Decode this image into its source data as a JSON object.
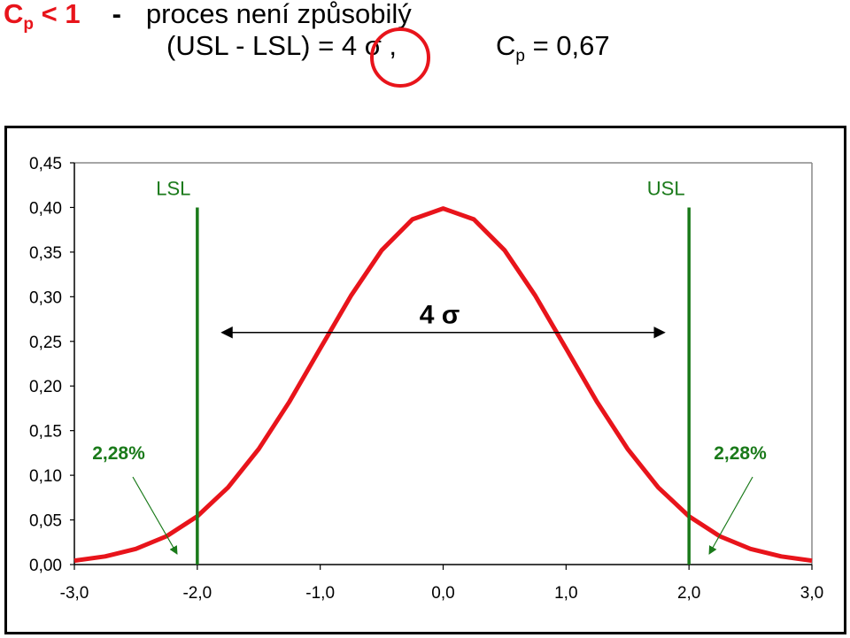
{
  "header": {
    "cp_symbol": "C",
    "cp_sub": "p",
    "cp_relation": "< 1",
    "dash": "-",
    "description": "proces není způsobilý",
    "formula_left": "(USL - LSL) = 4 σ ,",
    "cp_value_symbol": "C",
    "cp_value_sub": "p",
    "cp_value_text": "= 0,67"
  },
  "chart_data": {
    "type": "line",
    "series": [
      {
        "values_x": [
          -3.0,
          -2.75,
          -2.5,
          -2.25,
          -2.0,
          -1.75,
          -1.5,
          -1.25,
          -1.0,
          -0.75,
          -0.5,
          -0.25,
          0.0,
          0.25,
          0.5,
          0.75,
          1.0,
          1.25,
          1.5,
          1.75,
          2.0,
          2.25,
          2.5,
          2.75,
          3.0
        ],
        "values_y": [
          0.0044,
          0.0091,
          0.0175,
          0.0317,
          0.054,
          0.0863,
          0.1295,
          0.1826,
          0.242,
          0.3011,
          0.3521,
          0.3867,
          0.3989,
          0.3867,
          0.3521,
          0.3011,
          0.242,
          0.1826,
          0.1295,
          0.0863,
          0.054,
          0.0317,
          0.0175,
          0.0091,
          0.0044
        ]
      }
    ],
    "x_ticks": [
      "-3,0",
      "-2,0",
      "-1,0",
      "0,0",
      "1,0",
      "2,0",
      "3,0"
    ],
    "y_ticks": [
      "0,00",
      "0,05",
      "0,10",
      "0,15",
      "0,20",
      "0,25",
      "0,30",
      "0,35",
      "0,40",
      "0,45"
    ],
    "xlim": [
      -3.0,
      3.0
    ],
    "ylim": [
      0.0,
      0.45
    ],
    "grid": false,
    "annotations": {
      "lsl": {
        "label": "LSL",
        "x": -2.0
      },
      "usl": {
        "label": "USL",
        "x": 2.0
      },
      "span_label": "4 σ",
      "span_x": [
        -1.8,
        1.8
      ],
      "span_y": 0.26,
      "tail_left_label": "2,28%",
      "tail_right_label": "2,28%"
    },
    "colors": {
      "curve": "#e8141b",
      "spec_lines": "#1a7a1a",
      "arrows": "#1a7a1a"
    }
  }
}
